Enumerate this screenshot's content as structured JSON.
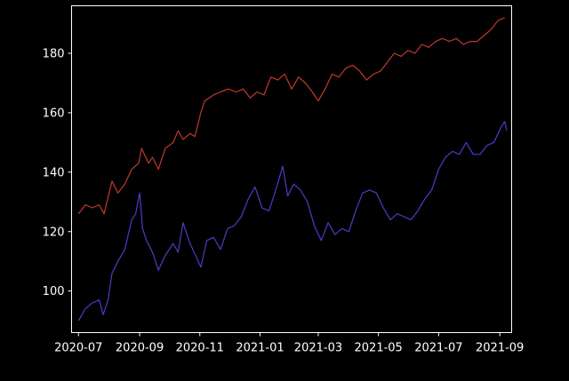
{
  "chart_data": {
    "type": "line",
    "title": "",
    "xlabel": "",
    "ylabel": "",
    "background": "#000000",
    "foreground": "#ffffff",
    "xlim": [
      "2020-06-24",
      "2021-09-13"
    ],
    "ylim": [
      86,
      196
    ],
    "x_ticks": [
      "2020-07",
      "2020-09",
      "2020-11",
      "2021-01",
      "2021-03",
      "2021-05",
      "2021-07",
      "2021-09"
    ],
    "y_ticks": [
      100,
      120,
      140,
      160,
      180
    ],
    "grid": false,
    "series": [
      {
        "color": "#c0392b",
        "points": [
          [
            "2020-07-01",
            126
          ],
          [
            "2020-07-08",
            129
          ],
          [
            "2020-07-15",
            128
          ],
          [
            "2020-07-22",
            129
          ],
          [
            "2020-07-27",
            126
          ],
          [
            "2020-08-04",
            137
          ],
          [
            "2020-08-10",
            133
          ],
          [
            "2020-08-17",
            136
          ],
          [
            "2020-08-24",
            141
          ],
          [
            "2020-08-31",
            143
          ],
          [
            "2020-09-03",
            148
          ],
          [
            "2020-09-10",
            143
          ],
          [
            "2020-09-14",
            145
          ],
          [
            "2020-09-20",
            141
          ],
          [
            "2020-09-27",
            148
          ],
          [
            "2020-10-05",
            150
          ],
          [
            "2020-10-10",
            154
          ],
          [
            "2020-10-15",
            151
          ],
          [
            "2020-10-22",
            153
          ],
          [
            "2020-10-27",
            152
          ],
          [
            "2020-11-02",
            160
          ],
          [
            "2020-11-06",
            164
          ],
          [
            "2020-11-15",
            166
          ],
          [
            "2020-11-22",
            167
          ],
          [
            "2020-11-30",
            168
          ],
          [
            "2020-12-08",
            167
          ],
          [
            "2020-12-15",
            168
          ],
          [
            "2020-12-22",
            165
          ],
          [
            "2020-12-29",
            167
          ],
          [
            "2021-01-05",
            166
          ],
          [
            "2021-01-12",
            172
          ],
          [
            "2021-01-19",
            171
          ],
          [
            "2021-01-26",
            173
          ],
          [
            "2021-02-02",
            168
          ],
          [
            "2021-02-09",
            172
          ],
          [
            "2021-02-16",
            170
          ],
          [
            "2021-02-23",
            167
          ],
          [
            "2021-03-01",
            164
          ],
          [
            "2021-03-08",
            168
          ],
          [
            "2021-03-15",
            173
          ],
          [
            "2021-03-22",
            172
          ],
          [
            "2021-03-29",
            175
          ],
          [
            "2021-04-05",
            176
          ],
          [
            "2021-04-12",
            174
          ],
          [
            "2021-04-19",
            171
          ],
          [
            "2021-04-26",
            173
          ],
          [
            "2021-05-03",
            174
          ],
          [
            "2021-05-10",
            177
          ],
          [
            "2021-05-17",
            180
          ],
          [
            "2021-05-24",
            179
          ],
          [
            "2021-05-31",
            181
          ],
          [
            "2021-06-07",
            180
          ],
          [
            "2021-06-14",
            183
          ],
          [
            "2021-06-21",
            182
          ],
          [
            "2021-06-28",
            184
          ],
          [
            "2021-07-05",
            185
          ],
          [
            "2021-07-12",
            184
          ],
          [
            "2021-07-19",
            185
          ],
          [
            "2021-07-26",
            183
          ],
          [
            "2021-08-02",
            184
          ],
          [
            "2021-08-09",
            184
          ],
          [
            "2021-08-16",
            186
          ],
          [
            "2021-08-23",
            188
          ],
          [
            "2021-08-30",
            191
          ],
          [
            "2021-09-06",
            192
          ]
        ]
      },
      {
        "color": "#4b3cc8",
        "points": [
          [
            "2020-07-01",
            90
          ],
          [
            "2020-07-08",
            94
          ],
          [
            "2020-07-15",
            96
          ],
          [
            "2020-07-22",
            97
          ],
          [
            "2020-07-26",
            92
          ],
          [
            "2020-07-31",
            97
          ],
          [
            "2020-08-04",
            106
          ],
          [
            "2020-08-10",
            110
          ],
          [
            "2020-08-17",
            114
          ],
          [
            "2020-08-24",
            124
          ],
          [
            "2020-08-28",
            126
          ],
          [
            "2020-09-01",
            133
          ],
          [
            "2020-09-04",
            121
          ],
          [
            "2020-09-08",
            117
          ],
          [
            "2020-09-14",
            113
          ],
          [
            "2020-09-20",
            107
          ],
          [
            "2020-09-27",
            112
          ],
          [
            "2020-10-05",
            116
          ],
          [
            "2020-10-10",
            113
          ],
          [
            "2020-10-15",
            123
          ],
          [
            "2020-10-22",
            116
          ],
          [
            "2020-10-29",
            111
          ],
          [
            "2020-11-02",
            108
          ],
          [
            "2020-11-08",
            117
          ],
          [
            "2020-11-15",
            118
          ],
          [
            "2020-11-22",
            114
          ],
          [
            "2020-11-29",
            121
          ],
          [
            "2020-12-06",
            122
          ],
          [
            "2020-12-13",
            125
          ],
          [
            "2020-12-20",
            131
          ],
          [
            "2020-12-27",
            135
          ],
          [
            "2021-01-03",
            128
          ],
          [
            "2021-01-10",
            127
          ],
          [
            "2021-01-17",
            134
          ],
          [
            "2021-01-24",
            142
          ],
          [
            "2021-01-29",
            132
          ],
          [
            "2021-02-04",
            136
          ],
          [
            "2021-02-11",
            134
          ],
          [
            "2021-02-18",
            130
          ],
          [
            "2021-02-25",
            122
          ],
          [
            "2021-03-04",
            117
          ],
          [
            "2021-03-11",
            123
          ],
          [
            "2021-03-18",
            119
          ],
          [
            "2021-03-25",
            121
          ],
          [
            "2021-04-01",
            120
          ],
          [
            "2021-04-08",
            127
          ],
          [
            "2021-04-15",
            133
          ],
          [
            "2021-04-22",
            134
          ],
          [
            "2021-04-29",
            133
          ],
          [
            "2021-05-06",
            128
          ],
          [
            "2021-05-13",
            124
          ],
          [
            "2021-05-20",
            126
          ],
          [
            "2021-05-27",
            125
          ],
          [
            "2021-06-03",
            124
          ],
          [
            "2021-06-10",
            127
          ],
          [
            "2021-06-17",
            131
          ],
          [
            "2021-06-24",
            134
          ],
          [
            "2021-07-01",
            141
          ],
          [
            "2021-07-08",
            145
          ],
          [
            "2021-07-15",
            147
          ],
          [
            "2021-07-22",
            146
          ],
          [
            "2021-07-29",
            150
          ],
          [
            "2021-08-05",
            146
          ],
          [
            "2021-08-12",
            146
          ],
          [
            "2021-08-19",
            149
          ],
          [
            "2021-08-26",
            150
          ],
          [
            "2021-09-02",
            155
          ],
          [
            "2021-09-06",
            157
          ],
          [
            "2021-09-08",
            154
          ]
        ]
      }
    ]
  }
}
